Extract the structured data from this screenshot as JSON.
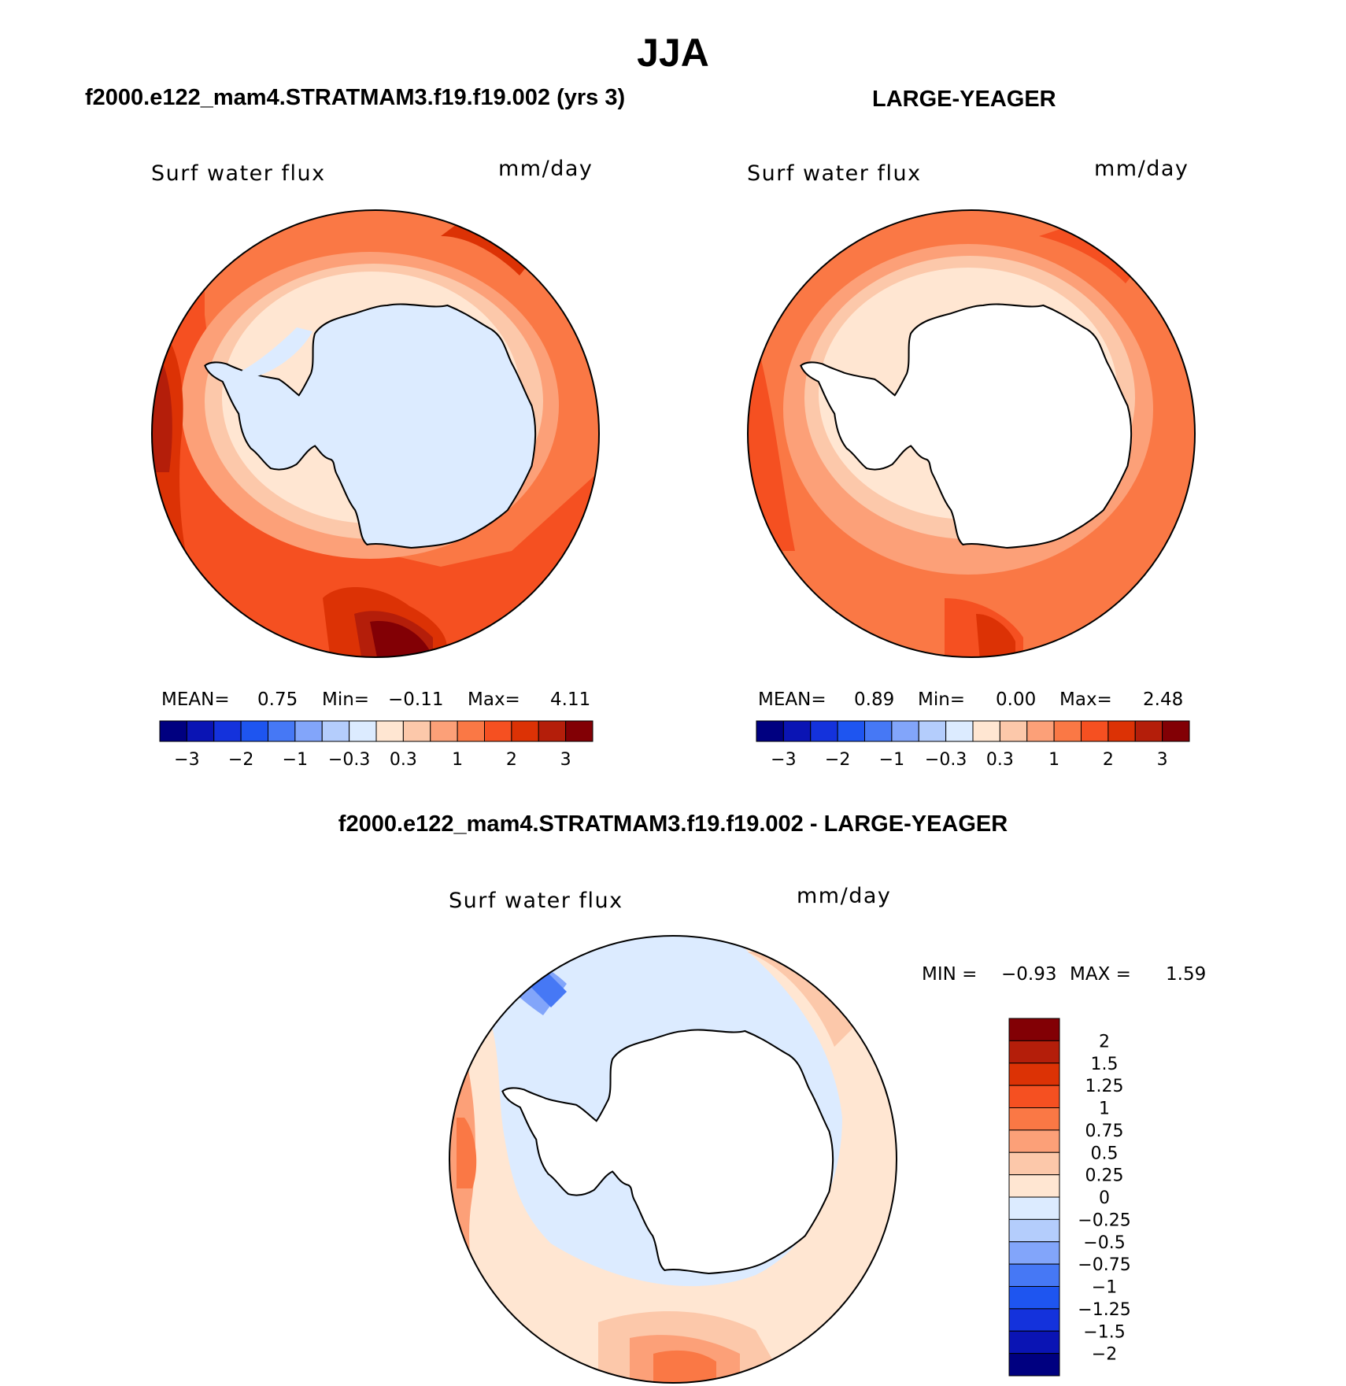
{
  "page": {
    "title": "JJA",
    "panel_left_title": "f2000.e122_mam4.STRATMAM3.f19.f19.002 (yrs 3)",
    "panel_right_title": "LARGE-YEAGER",
    "panel_bottom_title": "f2000.e122_mam4.STRATMAM3.f19.f19.002 - LARGE-YEAGER"
  },
  "colors": {
    "ocean_land": "#ffffff",
    "coastline": "#000000",
    "scale": [
      "#000080",
      "#0a14b4",
      "#1432dc",
      "#1e55f0",
      "#4678f5",
      "#82a5fa",
      "#b4cdfc",
      "#dcebff",
      "#ffe6d2",
      "#fcc8aa",
      "#fca078",
      "#fa7845",
      "#f55021",
      "#dc3205",
      "#b41e0a",
      "#820005"
    ]
  },
  "chart_data": [
    {
      "type": "heatmap",
      "projection": "south-polar-stereographic",
      "name": "model",
      "title": "f2000.e122_mam4.STRATMAM3.f19.f19.002 (yrs 3)",
      "variable": "Surf water flux",
      "units": "mm/day",
      "stats": {
        "mean_label": "MEAN=",
        "mean": "0.75",
        "min_label": "Min=",
        "min": "−0.11",
        "max_label": "Max=",
        "max": "4.11"
      },
      "colorbar": {
        "orientation": "horizontal",
        "labels": [
          "−3",
          "−2",
          "−1",
          "−0.3",
          "0.3",
          "1",
          "2",
          "3"
        ]
      }
    },
    {
      "type": "heatmap",
      "projection": "south-polar-stereographic",
      "name": "obs",
      "title": "LARGE-YEAGER",
      "variable": "Surf water flux",
      "units": "mm/day",
      "stats": {
        "mean_label": "MEAN=",
        "mean": "0.89",
        "min_label": "Min=",
        "min": "0.00",
        "max_label": "Max=",
        "max": "2.48"
      },
      "colorbar": {
        "orientation": "horizontal",
        "labels": [
          "−3",
          "−2",
          "−1",
          "−0.3",
          "0.3",
          "1",
          "2",
          "3"
        ]
      }
    },
    {
      "type": "heatmap",
      "projection": "south-polar-stereographic",
      "name": "difference",
      "title": "f2000.e122_mam4.STRATMAM3.f19.f19.002 - LARGE-YEAGER",
      "variable": "Surf water flux",
      "units": "mm/day",
      "stats": {
        "min_label": "MIN =",
        "min": "−0.93",
        "max_label": "MAX =",
        "max": "1.59"
      },
      "colorbar": {
        "orientation": "vertical",
        "labels": [
          "2",
          "1.5",
          "1.25",
          "1",
          "0.75",
          "0.5",
          "0.25",
          "0",
          "−0.25",
          "−0.5",
          "−0.75",
          "−1",
          "−1.25",
          "−1.5",
          "−2"
        ]
      }
    }
  ]
}
